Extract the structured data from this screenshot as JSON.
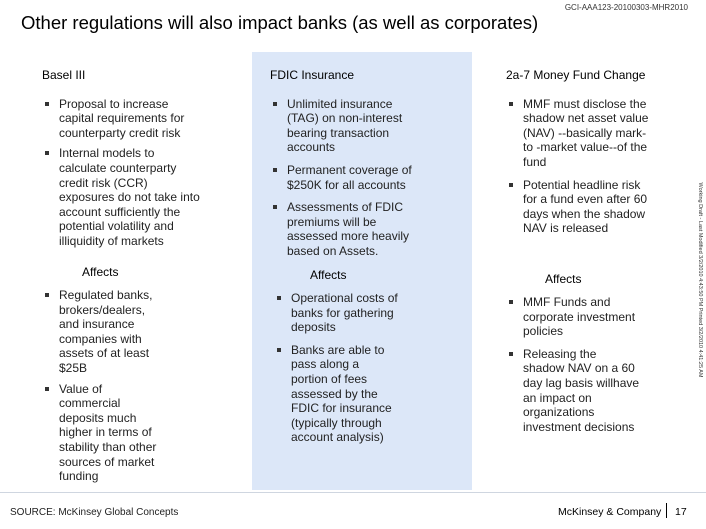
{
  "doc_id": "GCI-AAA123-20100303-MHR2010",
  "title": "Other regulations will also impact banks (as well as corporates)",
  "side_note": "Working Draft - Last Modified 3/2/2010 4:43:50 PM Printed 3/2/2010 4:41:25 AM",
  "columns": [
    {
      "heading": "Basel III",
      "bullets": [
        "Proposal to increase capital requirements for counterparty credit risk",
        "Internal models to calculate counterparty credit risk (CCR) exposures do not take into account sufficiently the potential volatility and illiquidity of markets"
      ],
      "affects_label": "Affects",
      "affects": [
        "Regulated banks, brokers/dealers, and insurance companies with assets of at least $25B",
        "Value of commercial deposits much higher in terms of stability than other sources of market funding"
      ]
    },
    {
      "heading": "FDIC Insurance",
      "bullets": [
        "Unlimited insurance (TAG) on non-interest bearing transaction accounts",
        "Permanent coverage of $250K for all accounts",
        "Assessments of FDIC premiums will be assessed more heavily based on Assets."
      ],
      "affects_label": "Affects",
      "affects": [
        "Operational costs of banks for gathering deposits",
        "Banks are able to pass along a portion of fees assessed by the FDIC for insurance (typically through account analysis)"
      ]
    },
    {
      "heading": "2a-7 Money Fund Change",
      "bullets": [
        "MMF must disclose the shadow net asset value (NAV) --basically mark-to -market value--of the fund",
        "Potential headline risk for a fund even after 60 days when the shadow NAV is released"
      ],
      "affects_label": "Affects",
      "affects": [
        "MMF Funds and corporate investment policies",
        "Releasing the shadow NAV on a 60 day lag basis willhave an impact on organizations investment decisions"
      ]
    }
  ],
  "footer": {
    "source": "SOURCE: McKinsey Global Concepts",
    "brand": "McKinsey & Company",
    "page": "17"
  }
}
